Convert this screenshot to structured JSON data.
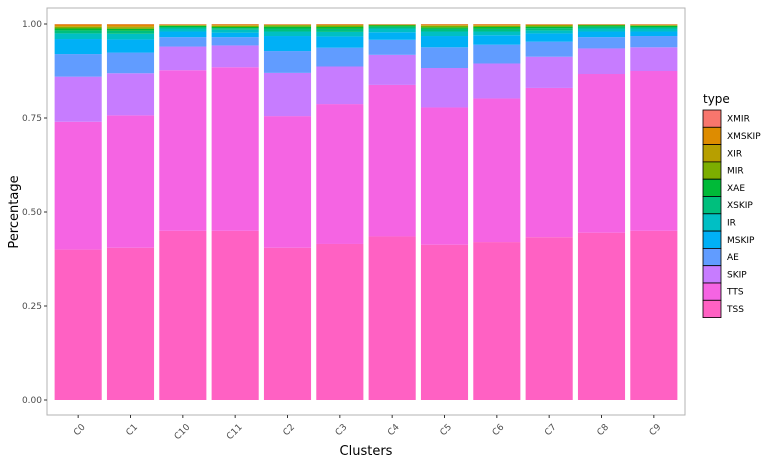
{
  "chart_data": {
    "type": "bar",
    "stacked": true,
    "xlabel": "Clusters",
    "ylabel": "Percentage",
    "ylim": [
      0,
      1
    ],
    "y_ticks": [
      "0.00",
      "0.25",
      "0.50",
      "0.75",
      "1.00"
    ],
    "y_tick_values": [
      0,
      0.25,
      0.5,
      0.75,
      1.0
    ],
    "categories": [
      "C0",
      "C1",
      "C10",
      "C11",
      "C2",
      "C3",
      "C4",
      "C5",
      "C6",
      "C7",
      "C8",
      "C9"
    ],
    "legend": {
      "title": "type",
      "position": "right"
    },
    "grid": false,
    "series": [
      {
        "name": "TSS",
        "color": "#FF61C3",
        "values": [
          0.4,
          0.405,
          0.45,
          0.45,
          0.405,
          0.415,
          0.435,
          0.413,
          0.42,
          0.433,
          0.445,
          0.45
        ]
      },
      {
        "name": "TTS",
        "color": "#F564E3",
        "values": [
          0.34,
          0.352,
          0.427,
          0.435,
          0.35,
          0.372,
          0.403,
          0.365,
          0.382,
          0.397,
          0.422,
          0.425
        ]
      },
      {
        "name": "SKIP",
        "color": "#C77CFF",
        "values": [
          0.12,
          0.112,
          0.063,
          0.058,
          0.115,
          0.1,
          0.08,
          0.105,
          0.093,
          0.083,
          0.068,
          0.063
        ]
      },
      {
        "name": "AE",
        "color": "#619CFF",
        "values": [
          0.06,
          0.055,
          0.025,
          0.022,
          0.058,
          0.05,
          0.04,
          0.055,
          0.05,
          0.04,
          0.03,
          0.03
        ]
      },
      {
        "name": "MSKIP",
        "color": "#00B0F6",
        "values": [
          0.04,
          0.035,
          0.015,
          0.012,
          0.04,
          0.03,
          0.02,
          0.03,
          0.025,
          0.022,
          0.015,
          0.012
        ]
      },
      {
        "name": "IR",
        "color": "#00BFC4",
        "values": [
          0.015,
          0.015,
          0.008,
          0.008,
          0.012,
          0.012,
          0.01,
          0.012,
          0.01,
          0.008,
          0.008,
          0.008
        ]
      },
      {
        "name": "XSKIP",
        "color": "#00BF7D",
        "values": [
          0.008,
          0.008,
          0.004,
          0.004,
          0.008,
          0.008,
          0.005,
          0.007,
          0.007,
          0.006,
          0.005,
          0.004
        ]
      },
      {
        "name": "XAE",
        "color": "#00BA38",
        "values": [
          0.005,
          0.005,
          0.003,
          0.003,
          0.005,
          0.005,
          0.003,
          0.004,
          0.005,
          0.004,
          0.003,
          0.003
        ]
      },
      {
        "name": "MIR",
        "color": "#7CAE00",
        "values": [
          0.004,
          0.004,
          0.002,
          0.003,
          0.004,
          0.004,
          0.002,
          0.004,
          0.003,
          0.003,
          0.002,
          0.002
        ]
      },
      {
        "name": "XIR",
        "color": "#B79F00",
        "values": [
          0.002,
          0.002,
          0.001,
          0.002,
          0.001,
          0.001,
          0.001,
          0.002,
          0.002,
          0.002,
          0.001,
          0.001
        ]
      },
      {
        "name": "XMSKIP",
        "color": "#DE8C00",
        "values": [
          0.005,
          0.006,
          0.001,
          0.002,
          0.001,
          0.002,
          0.0,
          0.002,
          0.002,
          0.001,
          0.0,
          0.001
        ]
      },
      {
        "name": "XMIR",
        "color": "#F8766D",
        "values": [
          0.001,
          0.001,
          0.001,
          0.001,
          0.001,
          0.001,
          0.001,
          0.001,
          0.001,
          0.001,
          0.001,
          0.001
        ]
      }
    ],
    "legend_order": [
      "XMIR",
      "XMSKIP",
      "XIR",
      "MIR",
      "XAE",
      "XSKIP",
      "IR",
      "MSKIP",
      "AE",
      "SKIP",
      "TTS",
      "TSS"
    ]
  }
}
